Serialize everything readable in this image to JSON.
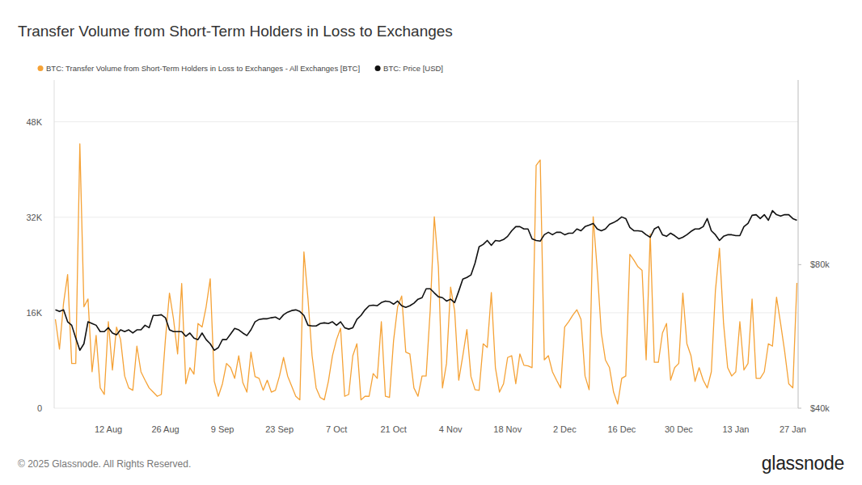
{
  "chart_data": {
    "type": "line",
    "title": "Transfer Volume from Short-Term Holders in Loss to Exchanges",
    "annotations": [
      "© 2025 Glassnode. All Rights Reserved.",
      "glassnode"
    ],
    "legend": "top-left",
    "grid": true,
    "log": "y2",
    "categories": [
      null,
      null,
      null,
      null,
      null,
      null,
      null,
      null,
      null,
      null,
      null,
      null,
      null,
      "12 Aug",
      null,
      null,
      null,
      null,
      null,
      null,
      null,
      null,
      null,
      null,
      null,
      null,
      null,
      "26 Aug",
      null,
      null,
      null,
      null,
      null,
      null,
      null,
      null,
      null,
      null,
      null,
      null,
      null,
      "9 Sep",
      null,
      null,
      null,
      null,
      null,
      null,
      null,
      null,
      null,
      null,
      null,
      null,
      null,
      "23 Sep",
      null,
      null,
      null,
      null,
      null,
      null,
      null,
      null,
      null,
      null,
      null,
      null,
      null,
      "7 Oct",
      null,
      null,
      null,
      null,
      null,
      null,
      null,
      null,
      null,
      null,
      null,
      null,
      null,
      "21 Oct",
      null,
      null,
      null,
      null,
      null,
      null,
      null,
      null,
      null,
      null,
      null,
      null,
      null,
      "4 Nov",
      null,
      null,
      null,
      null,
      null,
      null,
      null,
      null,
      null,
      null,
      null,
      null,
      null,
      "18 Nov",
      null,
      null,
      null,
      null,
      null,
      null,
      null,
      null,
      null,
      null,
      null,
      null,
      null,
      "2 Dec",
      null,
      null,
      null,
      null,
      null,
      null,
      null,
      null,
      null,
      null,
      null,
      null,
      null,
      "16 Dec",
      null,
      null,
      null,
      null,
      null,
      null,
      null,
      null,
      null,
      null,
      null,
      null,
      null,
      "30 Dec",
      null,
      null,
      null,
      null,
      null,
      null,
      null,
      null,
      null,
      null,
      null,
      null,
      null,
      "13 Jan",
      null,
      null,
      null,
      null,
      null,
      null,
      null,
      null,
      null,
      null,
      null,
      null,
      null,
      "27 Jan",
      null
    ],
    "ylim": [
      0,
      55000
    ],
    "yticks": [
      0,
      {
        "value": 16000,
        "label": "16K"
      },
      {
        "value": 32000,
        "label": "32K"
      },
      {
        "value": 48000,
        "label": "48K"
      }
    ],
    "y2lim": [
      40000,
      195000
    ],
    "y2ticks": [
      {
        "value": 40000,
        "label": "$40k"
      },
      {
        "value": 80000,
        "label": "$80k"
      }
    ],
    "series": [
      {
        "name": "BTC: Transfer Volume from Short-Term Holders in Loss to Exchanges - All Exchanges [BTC]",
        "color": "#f5a236",
        "values": [
          14900,
          9900,
          17600,
          22400,
          7500,
          7500,
          44300,
          17000,
          18300,
          6100,
          12200,
          3400,
          2300,
          14500,
          6400,
          13600,
          11500,
          5400,
          3400,
          3000,
          10400,
          6100,
          4700,
          3400,
          2700,
          2000,
          2300,
          11500,
          19300,
          14900,
          9100,
          20900,
          4100,
          6800,
          5700,
          14200,
          13600,
          17000,
          21700,
          4500,
          2000,
          4100,
          7500,
          6800,
          5000,
          8800,
          4300,
          2700,
          9400,
          5300,
          5000,
          3000,
          4700,
          2700,
          3000,
          5400,
          8500,
          5400,
          3700,
          2000,
          1400,
          26200,
          18300,
          8800,
          3400,
          1800,
          1400,
          4500,
          8800,
          11500,
          13400,
          2000,
          2300,
          8800,
          10800,
          1400,
          2000,
          2000,
          5800,
          5000,
          14500,
          2000,
          1800,
          11300,
          17000,
          18800,
          9400,
          9100,
          3400,
          2000,
          5400,
          5400,
          16500,
          32100,
          23700,
          3400,
          7500,
          20300,
          16300,
          4700,
          8800,
          13200,
          5300,
          3100,
          3000,
          10800,
          10200,
          19400,
          6800,
          2700,
          4100,
          8500,
          8800,
          4100,
          9100,
          7200,
          7100,
          6800,
          40700,
          41600,
          8100,
          8800,
          6100,
          4700,
          3400,
          13600,
          14500,
          15600,
          16500,
          14900,
          5400,
          3100,
          32100,
          23100,
          12600,
          8100,
          6800,
          2700,
          700,
          5000,
          5400,
          25800,
          24800,
          23700,
          23100,
          8100,
          29200,
          7700,
          7700,
          12600,
          14200,
          4700,
          6800,
          7500,
          19300,
          10800,
          8800,
          4500,
          6800,
          4700,
          3400,
          6100,
          19700,
          26800,
          14200,
          6800,
          5400,
          6100,
          14500,
          6400,
          7500,
          18300,
          5000,
          5000,
          6100,
          10800,
          10400,
          18600,
          14200,
          9500,
          4100,
          3400,
          21000
        ]
      },
      {
        "name": "BTC: Price [USD]",
        "color": "#111111",
        "axis": "y2",
        "values": [
          64300,
          63800,
          64300,
          60700,
          59700,
          56100,
          52900,
          54600,
          60700,
          60200,
          59700,
          57900,
          57900,
          59000,
          57500,
          57000,
          58400,
          57900,
          58400,
          57500,
          58400,
          58400,
          59700,
          59000,
          62600,
          62600,
          62800,
          61900,
          58400,
          57900,
          57900,
          57900,
          56600,
          57500,
          56100,
          55700,
          57500,
          55700,
          54600,
          52900,
          53600,
          55700,
          55700,
          57200,
          58800,
          58400,
          57500,
          56800,
          58400,
          60700,
          61400,
          61600,
          61600,
          61900,
          62100,
          61400,
          62800,
          63600,
          64100,
          64300,
          63800,
          62600,
          59700,
          59500,
          59500,
          60200,
          60400,
          60200,
          60700,
          59700,
          60700,
          59000,
          58600,
          59000,
          61400,
          62600,
          64300,
          65600,
          65800,
          65600,
          66600,
          67100,
          66900,
          66100,
          67100,
          65600,
          65100,
          65600,
          66400,
          67700,
          68200,
          71200,
          71200,
          69800,
          68500,
          68200,
          67100,
          67700,
          66600,
          70400,
          74600,
          75200,
          76100,
          80600,
          87200,
          88200,
          89900,
          87800,
          89900,
          89600,
          90300,
          91700,
          94200,
          96100,
          96100,
          95000,
          95000,
          90600,
          89900,
          89600,
          92400,
          93500,
          92400,
          93500,
          93500,
          92400,
          93100,
          93100,
          95000,
          94200,
          96100,
          96800,
          97600,
          95000,
          94200,
          95000,
          97200,
          98000,
          99100,
          100700,
          99900,
          95700,
          94200,
          94200,
          93900,
          92400,
          91300,
          95000,
          96100,
          92400,
          91700,
          93100,
          92000,
          90600,
          91300,
          92400,
          93900,
          95000,
          95000,
          96100,
          99900,
          94200,
          92400,
          89900,
          91700,
          92400,
          92400,
          92000,
          92000,
          96100,
          97600,
          101500,
          101800,
          99900,
          101800,
          99100,
          103800,
          101800,
          101100,
          101800,
          101800,
          99900,
          99100
        ]
      }
    ]
  }
}
